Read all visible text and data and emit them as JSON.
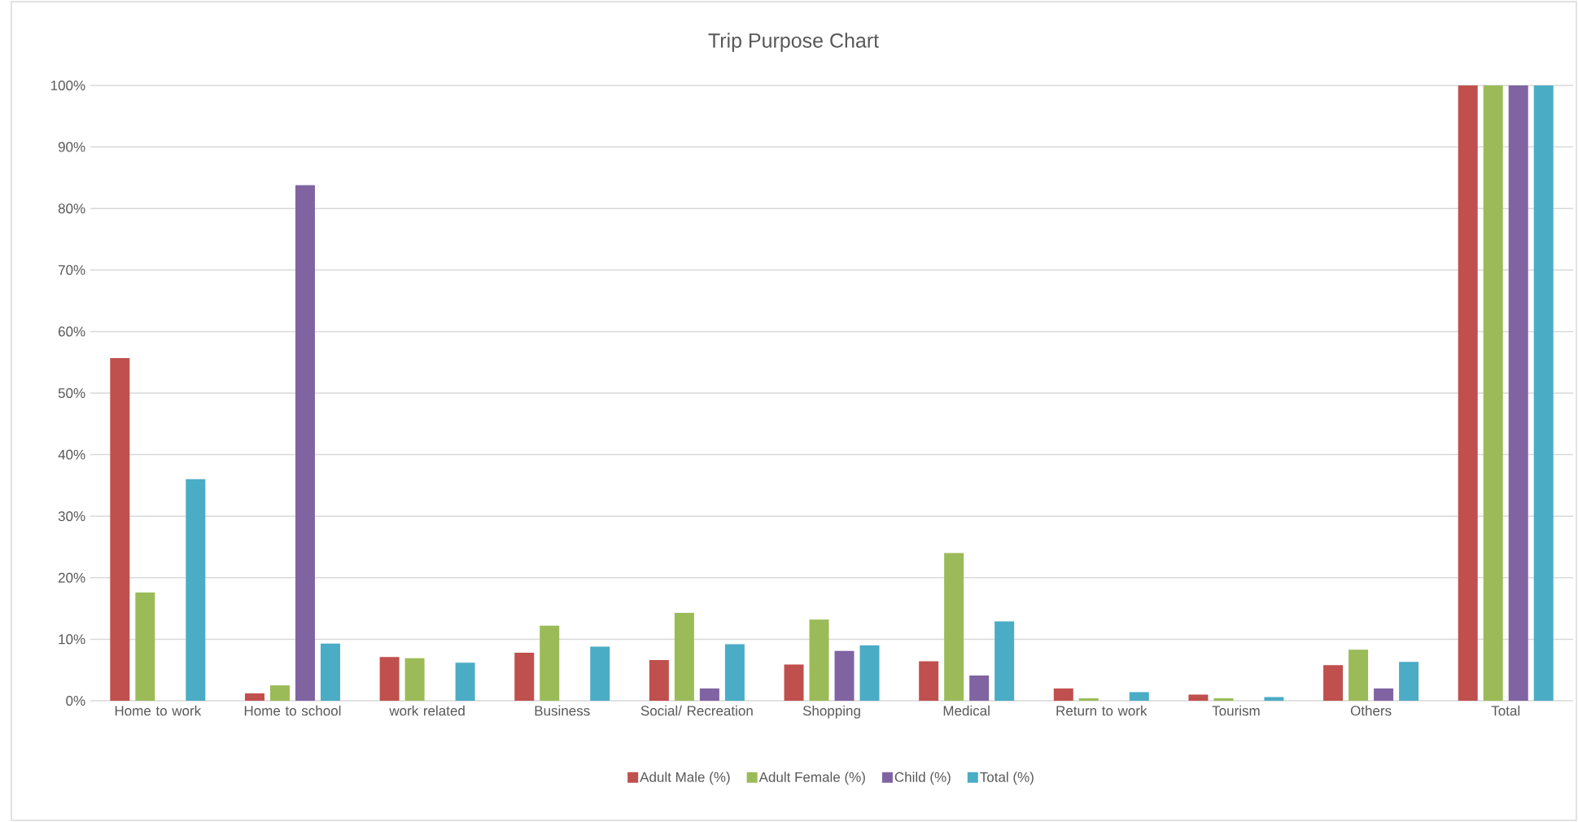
{
  "chart_data": {
    "type": "bar",
    "title": "Trip Purpose Chart",
    "categories": [
      "Home to work",
      "Home to school",
      "work related",
      "Business",
      "Social/ Recreation",
      "Shopping",
      "Medical",
      "Return to work",
      "Tourism",
      "Others",
      "Total"
    ],
    "series": [
      {
        "name": "Adult Male (%)",
        "color": "#c0504d",
        "values": [
          55.7,
          1.2,
          7.1,
          7.8,
          6.6,
          5.9,
          6.4,
          2.0,
          1.0,
          5.8,
          100
        ]
      },
      {
        "name": "Adult Female (%)",
        "color": "#9bbb59",
        "values": [
          17.6,
          2.5,
          6.9,
          12.2,
          14.3,
          13.2,
          24.0,
          0.4,
          0.4,
          8.3,
          100
        ]
      },
      {
        "name": "Child (%)",
        "color": "#8064a2",
        "values": [
          null,
          83.8,
          null,
          null,
          2.0,
          8.1,
          4.1,
          null,
          null,
          2.0,
          100
        ]
      },
      {
        "name": "Total (%)",
        "color": "#4bacc6",
        "values": [
          36.0,
          9.3,
          6.2,
          8.8,
          9.2,
          9.0,
          12.9,
          1.4,
          0.6,
          6.3,
          100
        ]
      }
    ],
    "ylim": [
      0,
      100
    ],
    "yticks": [
      {
        "value": 0,
        "label": "0%"
      },
      {
        "value": 10,
        "label": "10%"
      },
      {
        "value": 20,
        "label": "20%"
      },
      {
        "value": 30,
        "label": "30%"
      },
      {
        "value": 40,
        "label": "40%"
      },
      {
        "value": 50,
        "label": "50%"
      },
      {
        "value": 60,
        "label": "60%"
      },
      {
        "value": 70,
        "label": "70%"
      },
      {
        "value": 80,
        "label": "80%"
      },
      {
        "value": 90,
        "label": "90%"
      },
      {
        "value": 100,
        "label": "100%"
      }
    ],
    "grid": "y",
    "legend": "bottom"
  }
}
